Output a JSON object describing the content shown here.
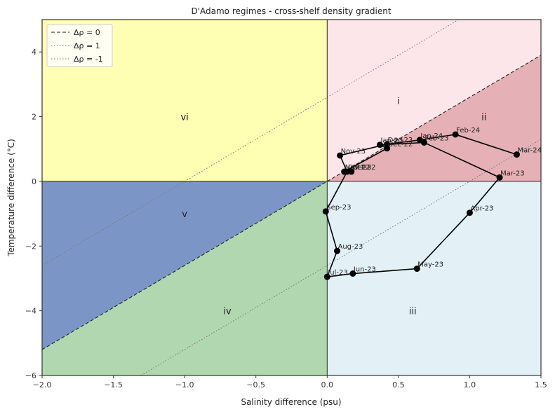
{
  "chart_data": {
    "type": "scatter",
    "title": "D'Adamo regimes - cross-shelf density gradient",
    "xlabel": "Salinity difference (psu)",
    "ylabel": "Temperature difference (°C)",
    "xlim": [
      -2.0,
      1.5
    ],
    "ylim": [
      -6,
      5
    ],
    "xticks": [
      -2.0,
      -1.5,
      -1.0,
      -0.5,
      0.0,
      0.5,
      1.0,
      1.5
    ],
    "xtick_labels": [
      "−2.0",
      "−1.5",
      "−1.0",
      "−0.5",
      "0.0",
      "0.5",
      "1.0",
      "1.5"
    ],
    "yticks": [
      -6,
      -4,
      -2,
      0,
      2,
      4
    ],
    "ytick_labels": [
      "−6",
      "−4",
      "−2",
      "0",
      "2",
      "4"
    ],
    "grid": false,
    "legend_position": "top-left",
    "density_lines": {
      "slope": 2.6,
      "series": [
        {
          "name": "Δρ = 0",
          "intercept": 0,
          "style": "dashed",
          "color": "#222222"
        },
        {
          "name": "Δρ = 1",
          "intercept": -2.6,
          "style": "dotted",
          "color": "#777777"
        },
        {
          "name": "Δρ = -1",
          "intercept": 2.6,
          "style": "dotted",
          "color": "#777777"
        }
      ]
    },
    "regions": [
      {
        "label": "vi",
        "color": "#ffffb3",
        "label_at": [
          -1.0,
          2.0
        ]
      },
      {
        "label": "i",
        "color": "#fde6ea",
        "label_at": [
          0.5,
          2.5
        ]
      },
      {
        "label": "ii",
        "color": "#e5b1b6",
        "label_at": [
          1.1,
          2.0
        ]
      },
      {
        "label": "iii",
        "color": "#e3f1f6",
        "label_at": [
          0.6,
          -4.0
        ]
      },
      {
        "label": "iv",
        "color": "#b1d7b0",
        "label_at": [
          -0.7,
          -4.0
        ]
      },
      {
        "label": "v",
        "color": "#7b96c6",
        "label_at": [
          -1.0,
          -1.0
        ]
      }
    ],
    "points": [
      {
        "label": "Oct-22",
        "x": 0.17,
        "y": 0.3
      },
      {
        "label": "Nov-22",
        "x": 0.12,
        "y": 0.3
      },
      {
        "label": "Dec-22",
        "x": 0.42,
        "y": 1.02
      },
      {
        "label": "Jan-23",
        "x": 0.37,
        "y": 1.13
      },
      {
        "label": "Feb-23",
        "x": 0.68,
        "y": 1.2
      },
      {
        "label": "Mar-23",
        "x": 1.21,
        "y": 0.12
      },
      {
        "label": "Apr-23",
        "x": 1.0,
        "y": -0.97
      },
      {
        "label": "May-23",
        "x": 0.63,
        "y": -2.7
      },
      {
        "label": "Jun-23",
        "x": 0.18,
        "y": -2.85
      },
      {
        "label": "Jul-23",
        "x": 0.0,
        "y": -2.95
      },
      {
        "label": "Aug-23",
        "x": 0.07,
        "y": -2.15
      },
      {
        "label": "Sep-23",
        "x": -0.01,
        "y": -0.93
      },
      {
        "label": "Oct-23",
        "x": 0.14,
        "y": 0.3
      },
      {
        "label": "Nov-23",
        "x": 0.09,
        "y": 0.8
      },
      {
        "label": "Dec-23",
        "x": 0.42,
        "y": 1.15
      },
      {
        "label": "Jan-24",
        "x": 0.65,
        "y": 1.28
      },
      {
        "label": "Feb-24",
        "x": 0.9,
        "y": 1.45
      },
      {
        "label": "Mar-24",
        "x": 1.33,
        "y": 0.83
      }
    ],
    "line_color": "#000000",
    "marker_color": "#000000"
  }
}
